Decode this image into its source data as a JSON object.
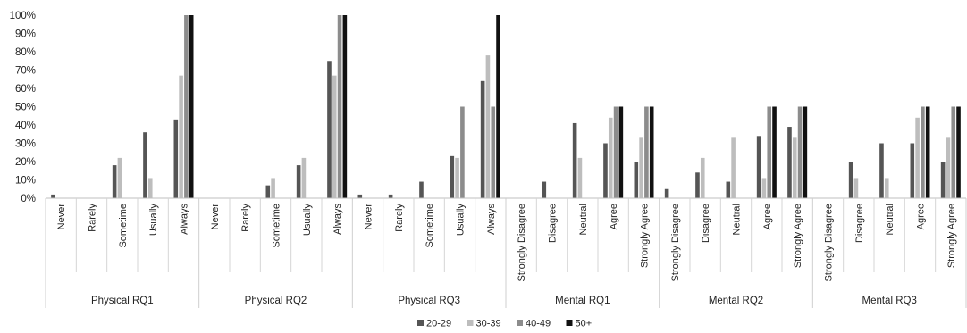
{
  "chart_data": {
    "type": "bar",
    "title": "",
    "xlabel": "",
    "ylabel": "",
    "ylim": [
      0,
      100
    ],
    "yticks": [
      "0%",
      "10%",
      "20%",
      "30%",
      "40%",
      "50%",
      "60%",
      "70%",
      "80%",
      "90%",
      "100%"
    ],
    "grid": false,
    "legend_position": "bottom",
    "series": [
      {
        "name": "20-29",
        "color": "#555555"
      },
      {
        "name": "30-39",
        "color": "#bdbdbd"
      },
      {
        "name": "40-49",
        "color": "#8c8c8c"
      },
      {
        "name": "50+",
        "color": "#111111"
      }
    ],
    "groups": [
      {
        "label": "Physical RQ1",
        "categories": [
          "Never",
          "Rarely",
          "Sometime",
          "Usually",
          "Always"
        ],
        "values": [
          [
            2,
            0,
            0,
            0
          ],
          [
            0,
            0,
            0,
            0
          ],
          [
            18,
            22,
            0,
            0
          ],
          [
            36,
            11,
            0,
            0
          ],
          [
            43,
            67,
            100,
            100
          ]
        ]
      },
      {
        "label": "Physical RQ2",
        "categories": [
          "Never",
          "Rarely",
          "Sometime",
          "Usually",
          "Always"
        ],
        "values": [
          [
            0,
            0,
            0,
            0
          ],
          [
            0,
            0,
            0,
            0
          ],
          [
            7,
            11,
            0,
            0
          ],
          [
            18,
            22,
            0,
            0
          ],
          [
            75,
            67,
            100,
            100
          ]
        ]
      },
      {
        "label": "Physical RQ3",
        "categories": [
          "Never",
          "Rarely",
          "Sometime",
          "Usually",
          "Always"
        ],
        "values": [
          [
            2,
            0,
            0,
            0
          ],
          [
            2,
            0,
            0,
            0
          ],
          [
            9,
            0,
            0,
            0
          ],
          [
            23,
            22,
            50,
            0
          ],
          [
            64,
            78,
            50,
            100
          ]
        ]
      },
      {
        "label": "Mental RQ1",
        "categories": [
          "Strongly Disagree",
          "Disagree",
          "Neutral",
          "Agree",
          "Strongly Agree"
        ],
        "values": [
          [
            0,
            0,
            0,
            0
          ],
          [
            9,
            0,
            0,
            0
          ],
          [
            41,
            22,
            0,
            0
          ],
          [
            30,
            44,
            50,
            50
          ],
          [
            20,
            33,
            50,
            50
          ]
        ]
      },
      {
        "label": "Mental RQ2",
        "categories": [
          "Strongly Disagree",
          "Disagree",
          "Neutral",
          "Agree",
          "Strongly Agree"
        ],
        "values": [
          [
            5,
            0,
            0,
            0
          ],
          [
            14,
            22,
            0,
            0
          ],
          [
            9,
            33,
            0,
            0
          ],
          [
            34,
            11,
            50,
            50
          ],
          [
            39,
            33,
            50,
            50
          ]
        ]
      },
      {
        "label": "Mental RQ3",
        "categories": [
          "Strongly Disagree",
          "Disagree",
          "Neutral",
          "Agree",
          "Strongly Agree"
        ],
        "values": [
          [
            0,
            0,
            0,
            0
          ],
          [
            20,
            11,
            0,
            0
          ],
          [
            30,
            11,
            0,
            0
          ],
          [
            30,
            44,
            50,
            50
          ],
          [
            20,
            33,
            50,
            50
          ]
        ]
      }
    ]
  }
}
